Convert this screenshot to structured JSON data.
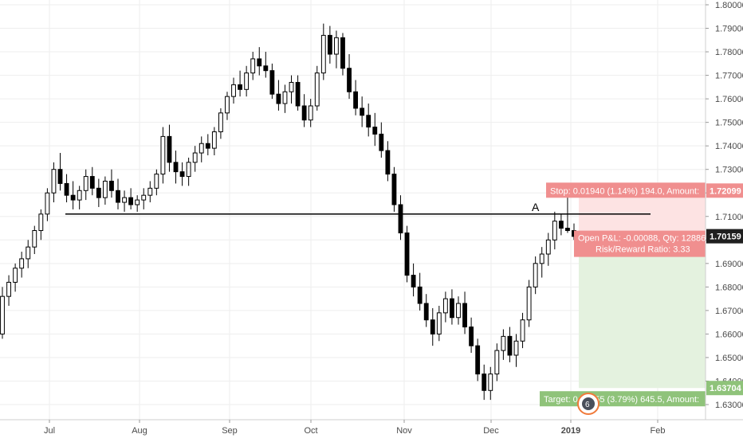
{
  "chart_data": {
    "type": "candlestick",
    "x_labels": [
      "Jul",
      "Aug",
      "Sep",
      "Oct",
      "Nov",
      "Dec",
      "2019",
      "Feb"
    ],
    "y_ticks": [
      "1.80000",
      "1.79000",
      "1.78000",
      "1.77000",
      "1.76000",
      "1.75000",
      "1.74000",
      "1.73000",
      "1.72000",
      "1.71000",
      "1.70000",
      "1.69000",
      "1.68000",
      "1.67000",
      "1.66000",
      "1.65000",
      "1.64000",
      "1.63000"
    ],
    "ylim": [
      1.625,
      1.8
    ],
    "grid": true,
    "candles": [
      [
        1.66,
        1.68,
        1.658,
        1.676
      ],
      [
        1.676,
        1.685,
        1.672,
        1.682
      ],
      [
        1.682,
        1.69,
        1.678,
        1.688
      ],
      [
        1.688,
        1.695,
        1.684,
        1.692
      ],
      [
        1.692,
        1.7,
        1.688,
        1.697
      ],
      [
        1.697,
        1.706,
        1.694,
        1.704
      ],
      [
        1.704,
        1.713,
        1.7,
        1.711
      ],
      [
        1.711,
        1.722,
        1.708,
        1.72
      ],
      [
        1.72,
        1.733,
        1.716,
        1.73
      ],
      [
        1.73,
        1.737,
        1.721,
        1.724
      ],
      [
        1.724,
        1.728,
        1.716,
        1.719
      ],
      [
        1.719,
        1.725,
        1.713,
        1.717
      ],
      [
        1.717,
        1.723,
        1.713,
        1.721
      ],
      [
        1.721,
        1.73,
        1.717,
        1.727
      ],
      [
        1.727,
        1.731,
        1.719,
        1.722
      ],
      [
        1.722,
        1.726,
        1.714,
        1.718
      ],
      [
        1.718,
        1.727,
        1.715,
        1.725
      ],
      [
        1.725,
        1.73,
        1.718,
        1.721
      ],
      [
        1.721,
        1.726,
        1.713,
        1.716
      ],
      [
        1.716,
        1.721,
        1.712,
        1.718
      ],
      [
        1.718,
        1.722,
        1.713,
        1.715
      ],
      [
        1.715,
        1.719,
        1.712,
        1.717
      ],
      [
        1.717,
        1.722,
        1.713,
        1.719
      ],
      [
        1.719,
        1.725,
        1.716,
        1.722
      ],
      [
        1.722,
        1.73,
        1.719,
        1.728
      ],
      [
        1.728,
        1.748,
        1.724,
        1.744
      ],
      [
        1.744,
        1.749,
        1.729,
        1.733
      ],
      [
        1.733,
        1.738,
        1.724,
        1.729
      ],
      [
        1.729,
        1.733,
        1.723,
        1.727
      ],
      [
        1.727,
        1.735,
        1.723,
        1.733
      ],
      [
        1.733,
        1.74,
        1.729,
        1.737
      ],
      [
        1.737,
        1.744,
        1.733,
        1.741
      ],
      [
        1.741,
        1.745,
        1.736,
        1.739
      ],
      [
        1.739,
        1.748,
        1.736,
        1.746
      ],
      [
        1.746,
        1.756,
        1.743,
        1.754
      ],
      [
        1.754,
        1.763,
        1.751,
        1.761
      ],
      [
        1.761,
        1.769,
        1.758,
        1.766
      ],
      [
        1.766,
        1.772,
        1.761,
        1.764
      ],
      [
        1.764,
        1.774,
        1.761,
        1.771
      ],
      [
        1.771,
        1.78,
        1.768,
        1.777
      ],
      [
        1.777,
        1.782,
        1.77,
        1.774
      ],
      [
        1.774,
        1.78,
        1.769,
        1.772
      ],
      [
        1.772,
        1.775,
        1.76,
        1.762
      ],
      [
        1.762,
        1.768,
        1.755,
        1.758
      ],
      [
        1.758,
        1.766,
        1.754,
        1.763
      ],
      [
        1.763,
        1.77,
        1.758,
        1.767
      ],
      [
        1.767,
        1.77,
        1.755,
        1.757
      ],
      [
        1.757,
        1.762,
        1.748,
        1.751
      ],
      [
        1.751,
        1.76,
        1.748,
        1.757
      ],
      [
        1.757,
        1.774,
        1.755,
        1.771
      ],
      [
        1.771,
        1.792,
        1.768,
        1.787
      ],
      [
        1.787,
        1.791,
        1.775,
        1.779
      ],
      [
        1.779,
        1.789,
        1.773,
        1.786
      ],
      [
        1.786,
        1.788,
        1.77,
        1.773
      ],
      [
        1.773,
        1.779,
        1.76,
        1.763
      ],
      [
        1.763,
        1.768,
        1.753,
        1.756
      ],
      [
        1.756,
        1.761,
        1.748,
        1.753
      ],
      [
        1.753,
        1.758,
        1.744,
        1.748
      ],
      [
        1.748,
        1.754,
        1.74,
        1.745
      ],
      [
        1.745,
        1.75,
        1.735,
        1.738
      ],
      [
        1.738,
        1.742,
        1.725,
        1.728
      ],
      [
        1.728,
        1.731,
        1.712,
        1.715
      ],
      [
        1.715,
        1.719,
        1.7,
        1.703
      ],
      [
        1.703,
        1.706,
        1.682,
        1.685
      ],
      [
        1.685,
        1.69,
        1.676,
        1.68
      ],
      [
        1.68,
        1.686,
        1.67,
        1.673
      ],
      [
        1.673,
        1.677,
        1.663,
        1.666
      ],
      [
        1.666,
        1.671,
        1.655,
        1.66
      ],
      [
        1.66,
        1.672,
        1.657,
        1.669
      ],
      [
        1.669,
        1.678,
        1.665,
        1.675
      ],
      [
        1.675,
        1.679,
        1.664,
        1.667
      ],
      [
        1.667,
        1.676,
        1.664,
        1.673
      ],
      [
        1.673,
        1.678,
        1.66,
        1.663
      ],
      [
        1.663,
        1.667,
        1.652,
        1.655
      ],
      [
        1.655,
        1.658,
        1.64,
        1.643
      ],
      [
        1.643,
        1.647,
        1.632,
        1.636
      ],
      [
        1.636,
        1.646,
        1.632,
        1.643
      ],
      [
        1.643,
        1.656,
        1.64,
        1.653
      ],
      [
        1.653,
        1.662,
        1.649,
        1.659
      ],
      [
        1.659,
        1.663,
        1.648,
        1.651
      ],
      [
        1.651,
        1.66,
        1.646,
        1.657
      ],
      [
        1.657,
        1.669,
        1.654,
        1.666
      ],
      [
        1.666,
        1.683,
        1.663,
        1.68
      ],
      [
        1.68,
        1.693,
        1.677,
        1.69
      ],
      [
        1.69,
        1.697,
        1.684,
        1.694
      ],
      [
        1.694,
        1.703,
        1.689,
        1.7
      ],
      [
        1.7,
        1.712,
        1.696,
        1.708
      ],
      [
        1.708,
        1.711,
        1.702,
        1.705
      ],
      [
        1.705,
        1.72,
        1.703,
        1.704
      ],
      [
        1.704,
        1.707,
        1.7,
        1.7015
      ]
    ],
    "annotations": {
      "horizontal_line_price": 1.711,
      "label": "A"
    },
    "position_tool": {
      "entry": 1.70159,
      "stop": 1.72099,
      "target": 1.63704,
      "stop_label": "Stop: 0.01940 (1.14%) 194.0, Amount:",
      "target_label": "Target: 0.06455 (3.79%) 645.5, Amount:",
      "pnl_label": "Open P&L: -0.00088, Qty: 12886",
      "ratio_label": "Risk/Reward Ratio: 3.33"
    },
    "price_badges": {
      "stop": "1.72099",
      "current": "1.70159",
      "target": "1.63704"
    },
    "marker_badge": "6"
  },
  "colors": {
    "up_fill": "#ffffff",
    "down_fill": "#000000",
    "candle_stroke": "#000000",
    "grid": "#eeeeee",
    "axis_text": "#4a4a4a",
    "stop_zone": "#fde3e3",
    "target_zone": "#e4f2df",
    "stop_badge": "#f08f8f",
    "target_badge": "#8fc37a",
    "current_badge": "#1f1f1f",
    "marker": "#f07a3b"
  }
}
